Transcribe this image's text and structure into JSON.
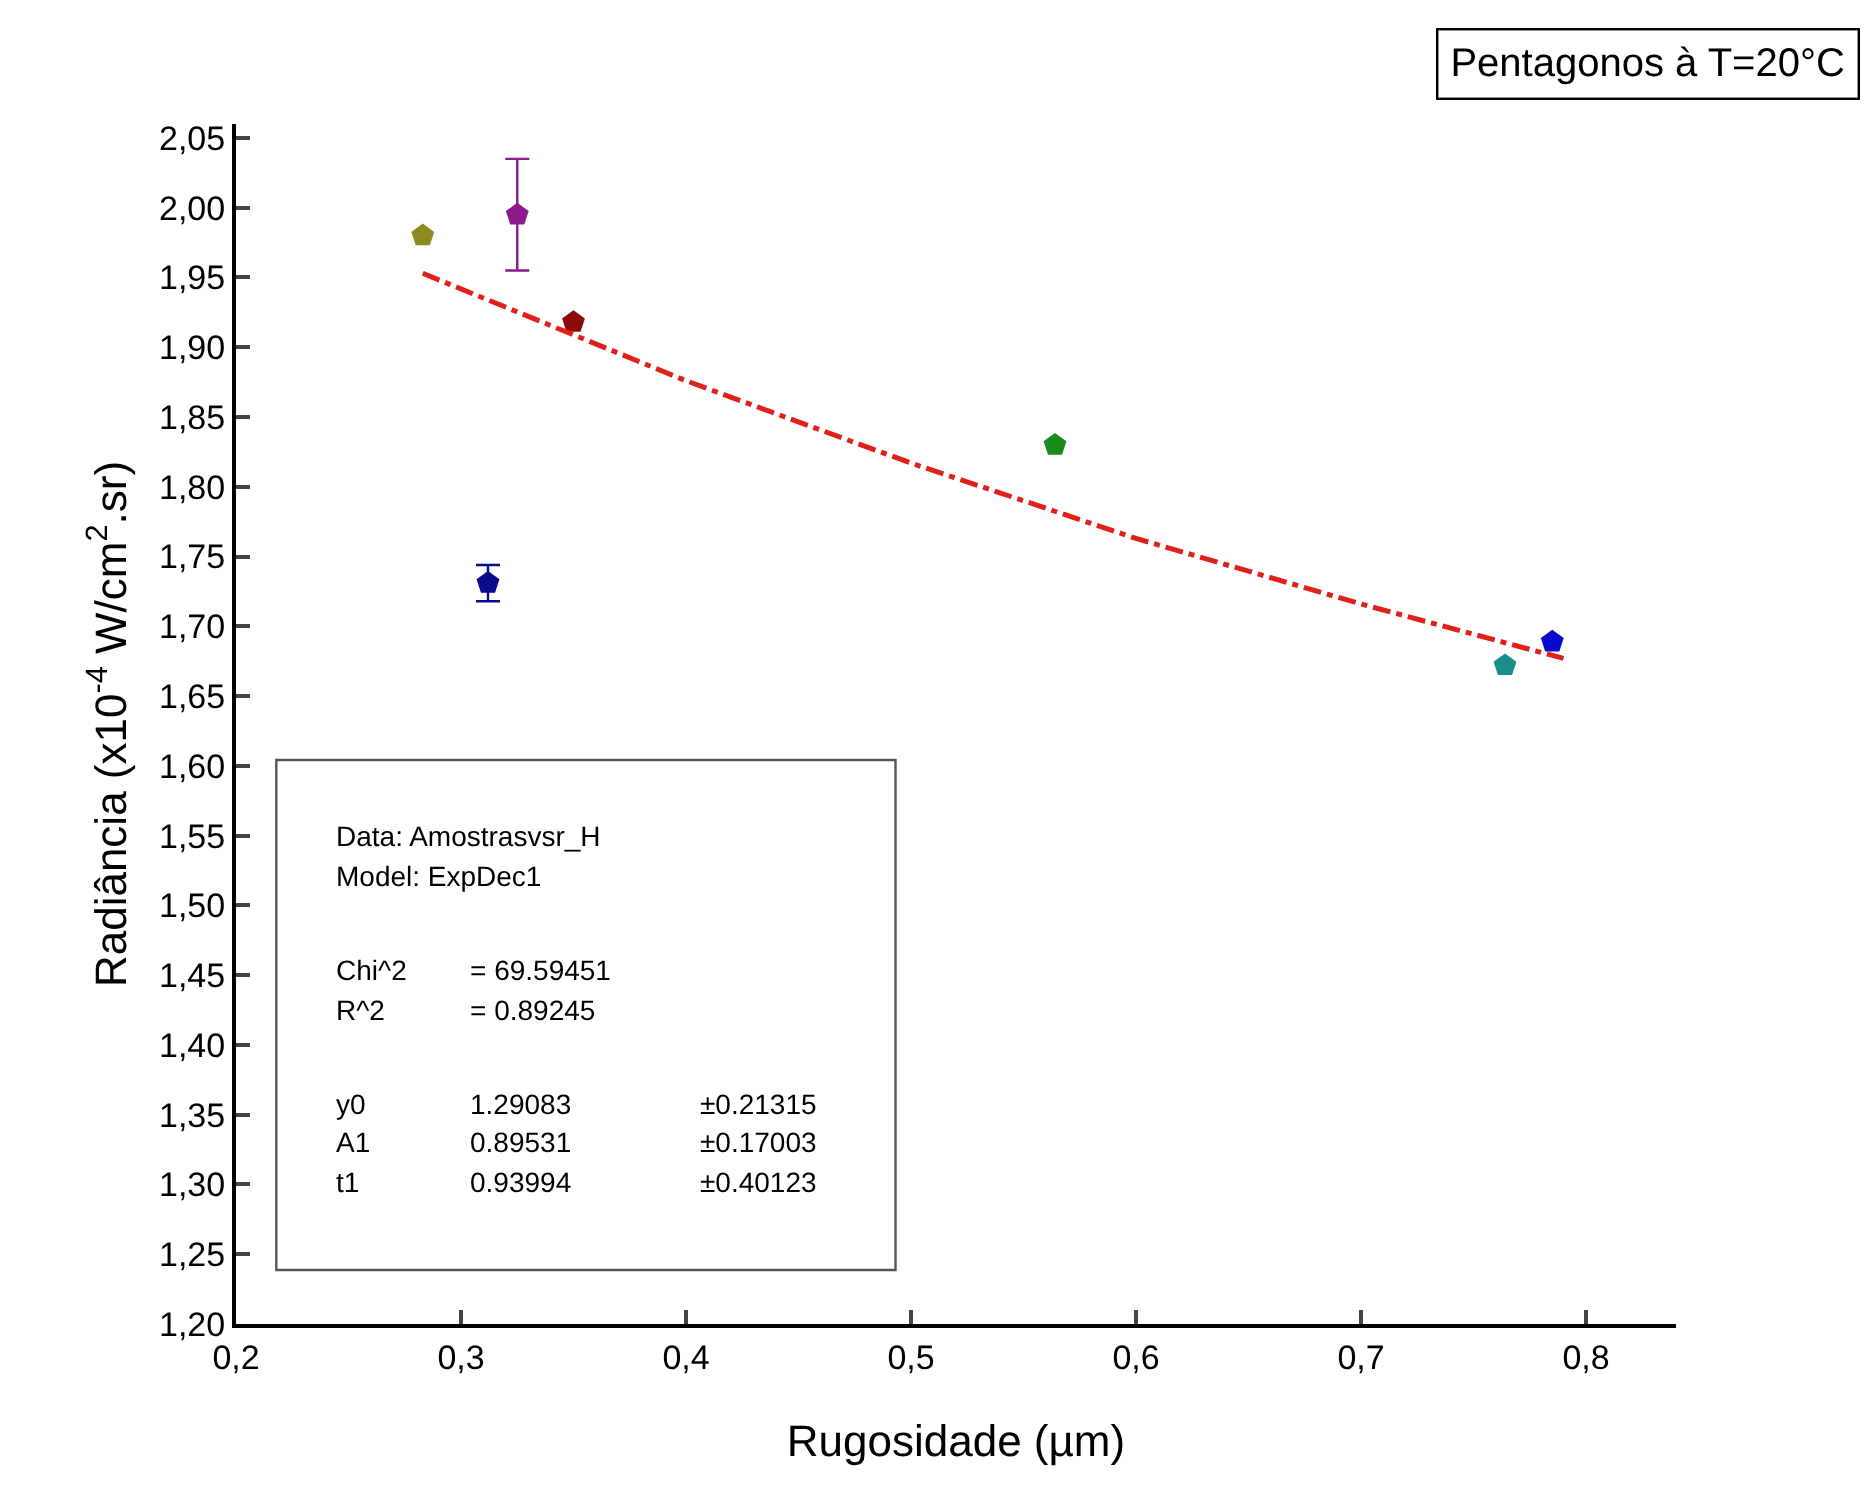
{
  "chart_data": {
    "type": "scatter",
    "title": "Pentagonos à T=20°C",
    "xlabel": "Rugosidade (µm)",
    "ylabel": "Radiância (x10$^{-4}$ W/cm$^{2}$.sr)",
    "x": [
      0.283,
      0.325,
      0.35,
      0.312,
      0.564,
      0.764,
      0.785
    ],
    "series": [
      {
        "type": "scatter",
        "colors": [
          "#8c8c1e",
          "#8b1a8b",
          "#8b0a0a",
          "#0a0a8c",
          "#1a8c1a",
          "#1a8c8c",
          "#0a0acc"
        ],
        "values": [
          1.98,
          1.995,
          1.918,
          1.731,
          1.83,
          1.672,
          1.689
        ],
        "errors": [
          null,
          0.04,
          null,
          0.013,
          null,
          null,
          null
        ]
      },
      {
        "type": "line",
        "color": "#e0201b",
        "line_style": "dashdot",
        "marker": "none",
        "x": [
          0.283,
          0.4,
          0.5,
          0.6,
          0.7,
          0.79
        ],
        "values": [
          1.953,
          1.876,
          1.817,
          1.763,
          1.716,
          1.677
        ]
      }
    ],
    "xlim": [
      0.2,
      0.84
    ],
    "ylim": [
      1.2,
      2.06
    ],
    "xticks": [
      {
        "value": 0.2,
        "label": "0,2"
      },
      {
        "value": 0.3,
        "label": "0,3"
      },
      {
        "value": 0.4,
        "label": "0,4"
      },
      {
        "value": 0.5,
        "label": "0,5"
      },
      {
        "value": 0.6,
        "label": "0,6"
      },
      {
        "value": 0.7,
        "label": "0,7"
      },
      {
        "value": 0.8,
        "label": "0,8"
      }
    ],
    "yticks": [
      {
        "value": 1.2,
        "label": "1,20"
      },
      {
        "value": 1.25,
        "label": "1,25"
      },
      {
        "value": 1.3,
        "label": "1,30"
      },
      {
        "value": 1.35,
        "label": "1,35"
      },
      {
        "value": 1.4,
        "label": "1,40"
      },
      {
        "value": 1.45,
        "label": "1,45"
      },
      {
        "value": 1.5,
        "label": "1,50"
      },
      {
        "value": 1.55,
        "label": "1,55"
      },
      {
        "value": 1.6,
        "label": "1,60"
      },
      {
        "value": 1.65,
        "label": "1,65"
      },
      {
        "value": 1.7,
        "label": "1,70"
      },
      {
        "value": 1.75,
        "label": "1,75"
      },
      {
        "value": 1.8,
        "label": "1,80"
      },
      {
        "value": 1.85,
        "label": "1,85"
      },
      {
        "value": 1.9,
        "label": "1,90"
      },
      {
        "value": 1.95,
        "label": "1,95"
      },
      {
        "value": 2.0,
        "label": "2,00"
      },
      {
        "value": 2.05,
        "label": "2,05"
      }
    ],
    "annotations": [
      "Data: Amostrasvsr_H",
      "Model: ExpDec1",
      "Chi^2\t= 69.59451",
      "R^2\t= 0.89245",
      "y0\t1.29083\t±0.21315",
      "A1\t0.89531\t±0.17003",
      "t1\t0.93994\t±0.40123"
    ]
  }
}
